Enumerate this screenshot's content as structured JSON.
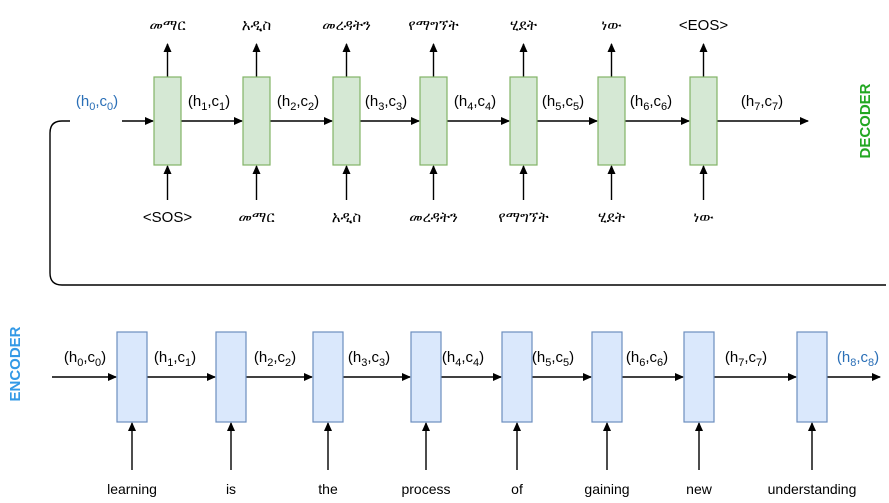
{
  "colors": {
    "decoder_cell_fill": "#d5e8d4",
    "decoder_cell_stroke": "#82b366",
    "encoder_cell_fill": "#dae8fc",
    "encoder_cell_stroke": "#6c8ebf",
    "decoder_label": "#22a722",
    "encoder_label": "#3399e6",
    "highlight_state": "#2a6fb7",
    "line": "#000000"
  },
  "decoder": {
    "label": "DECODER",
    "initial_state": {
      "h": "h",
      "hs": "0",
      "c": "c",
      "cs": "0",
      "highlight": true
    },
    "states": [
      {
        "h": "h",
        "hs": "1",
        "c": "c",
        "cs": "1"
      },
      {
        "h": "h",
        "hs": "2",
        "c": "c",
        "cs": "2"
      },
      {
        "h": "h",
        "hs": "3",
        "c": "c",
        "cs": "3"
      },
      {
        "h": "h",
        "hs": "4",
        "c": "c",
        "cs": "4"
      },
      {
        "h": "h",
        "hs": "5",
        "c": "c",
        "cs": "5"
      },
      {
        "h": "h",
        "hs": "6",
        "c": "c",
        "cs": "6"
      },
      {
        "h": "h",
        "hs": "7",
        "c": "c",
        "cs": "7"
      }
    ],
    "inputs": [
      "<SOS>",
      "መማር",
      "አዲስ",
      "መረዳትን",
      "የማግኘት",
      "ሂደት",
      "ነው"
    ],
    "outputs": [
      "መማር",
      "አዲስ",
      "መረዳትን",
      "የማግኘት",
      "ሂደት",
      "ነው",
      "<EOS>"
    ]
  },
  "encoder": {
    "label": "ENCODER",
    "states": [
      {
        "h": "h",
        "hs": "0",
        "c": "c",
        "cs": "0"
      },
      {
        "h": "h",
        "hs": "1",
        "c": "c",
        "cs": "1"
      },
      {
        "h": "h",
        "hs": "2",
        "c": "c",
        "cs": "2"
      },
      {
        "h": "h",
        "hs": "3",
        "c": "c",
        "cs": "3"
      },
      {
        "h": "h",
        "hs": "4",
        "c": "c",
        "cs": "4"
      },
      {
        "h": "h",
        "hs": "5",
        "c": "c",
        "cs": "5"
      },
      {
        "h": "h",
        "hs": "6",
        "c": "c",
        "cs": "6"
      },
      {
        "h": "h",
        "hs": "7",
        "c": "c",
        "cs": "7"
      }
    ],
    "final_state": {
      "h": "h",
      "hs": "8",
      "c": "c",
      "cs": "8",
      "highlight": true
    },
    "inputs": [
      "learning",
      "is",
      "the",
      "process",
      "of",
      "gaining",
      "new",
      "understanding"
    ]
  }
}
